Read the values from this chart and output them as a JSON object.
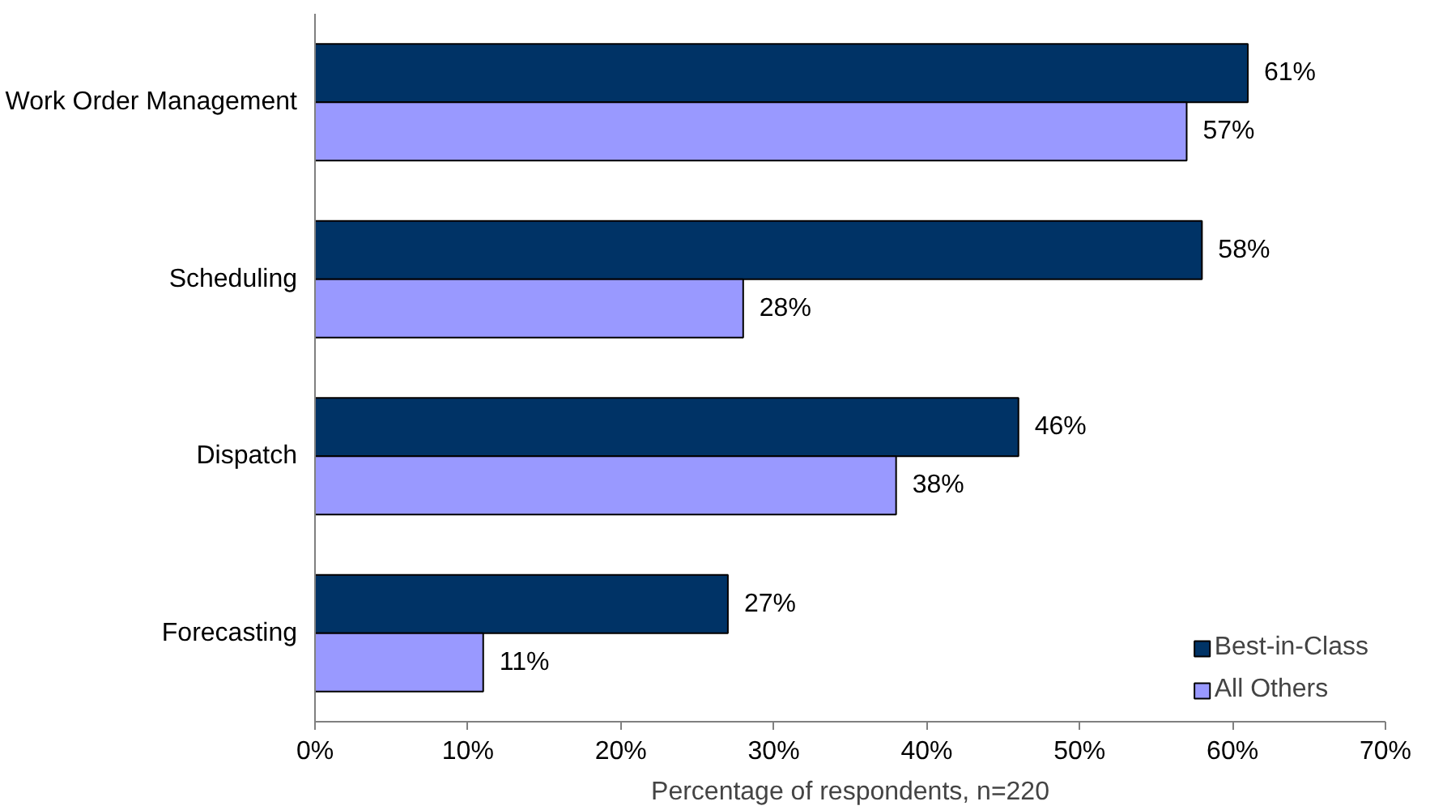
{
  "chart_data": {
    "type": "bar",
    "orientation": "horizontal",
    "categories": [
      "Work Order Management",
      "Scheduling",
      "Dispatch",
      "Forecasting"
    ],
    "series": [
      {
        "name": "Best-in-Class",
        "color": "#003366",
        "values": [
          61,
          58,
          46,
          27
        ],
        "value_labels": [
          "61%",
          "58%",
          "46%",
          "27%"
        ]
      },
      {
        "name": "All Others",
        "color": "#9999ff",
        "values": [
          57,
          28,
          38,
          11
        ],
        "value_labels": [
          "57%",
          "28%",
          "38%",
          "11%"
        ]
      }
    ],
    "xlim": [
      0,
      70
    ],
    "xticks": [
      {
        "value": 0,
        "label": "0%"
      },
      {
        "value": 10,
        "label": "10%"
      },
      {
        "value": 20,
        "label": "20%"
      },
      {
        "value": 30,
        "label": "30%"
      },
      {
        "value": 40,
        "label": "40%"
      },
      {
        "value": 50,
        "label": "50%"
      },
      {
        "value": 60,
        "label": "60%"
      },
      {
        "value": 70,
        "label": "70%"
      }
    ],
    "xlabel": "Percentage of respondents, n=220",
    "legend": "bottom right"
  }
}
